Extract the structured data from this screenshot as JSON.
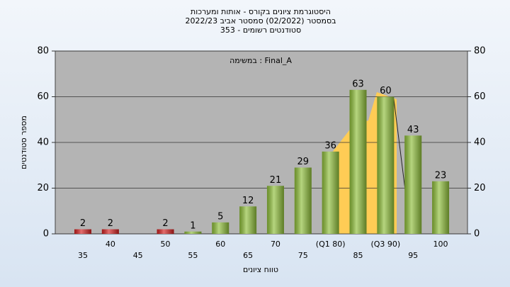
{
  "chart_data": {
    "type": "bar",
    "title_lines": [
      "היסטוגרמת ציונים בקורס - אותות ומערכות",
      "בסמסטר (02/2022) סמסטר אביב 2022/23",
      "סטודנטים רשומים - 353"
    ],
    "annotation": "במשימה : Final_A",
    "x_label": "טווח ציונים",
    "y_label": "מספר סטודנטים",
    "categories": [
      "35",
      "40",
      "45",
      "50",
      "55",
      "60",
      "65",
      "70",
      "75",
      "(Q1 80)",
      "85",
      "(Q3 90)",
      "95",
      "100"
    ],
    "values": [
      2,
      2,
      0,
      2,
      1,
      5,
      12,
      21,
      29,
      36,
      63,
      60,
      43,
      23
    ],
    "colors": [
      "#d42020",
      "#d42020",
      "#d42020",
      "#d42020",
      "#8fbf3a",
      "#8fbf3a",
      "#8fbf3a",
      "#8fbf3a",
      "#8fbf3a",
      "#8fbf3a",
      "#8fbf3a",
      "#8fbf3a",
      "#8fbf3a",
      "#8fbf3a"
    ],
    "ylim": [
      0,
      80
    ],
    "yticks": [
      0,
      20,
      40,
      60,
      80
    ],
    "y2lim": [
      0,
      80
    ],
    "y2ticks": [
      0,
      20,
      40,
      60,
      80
    ],
    "grid": true
  }
}
